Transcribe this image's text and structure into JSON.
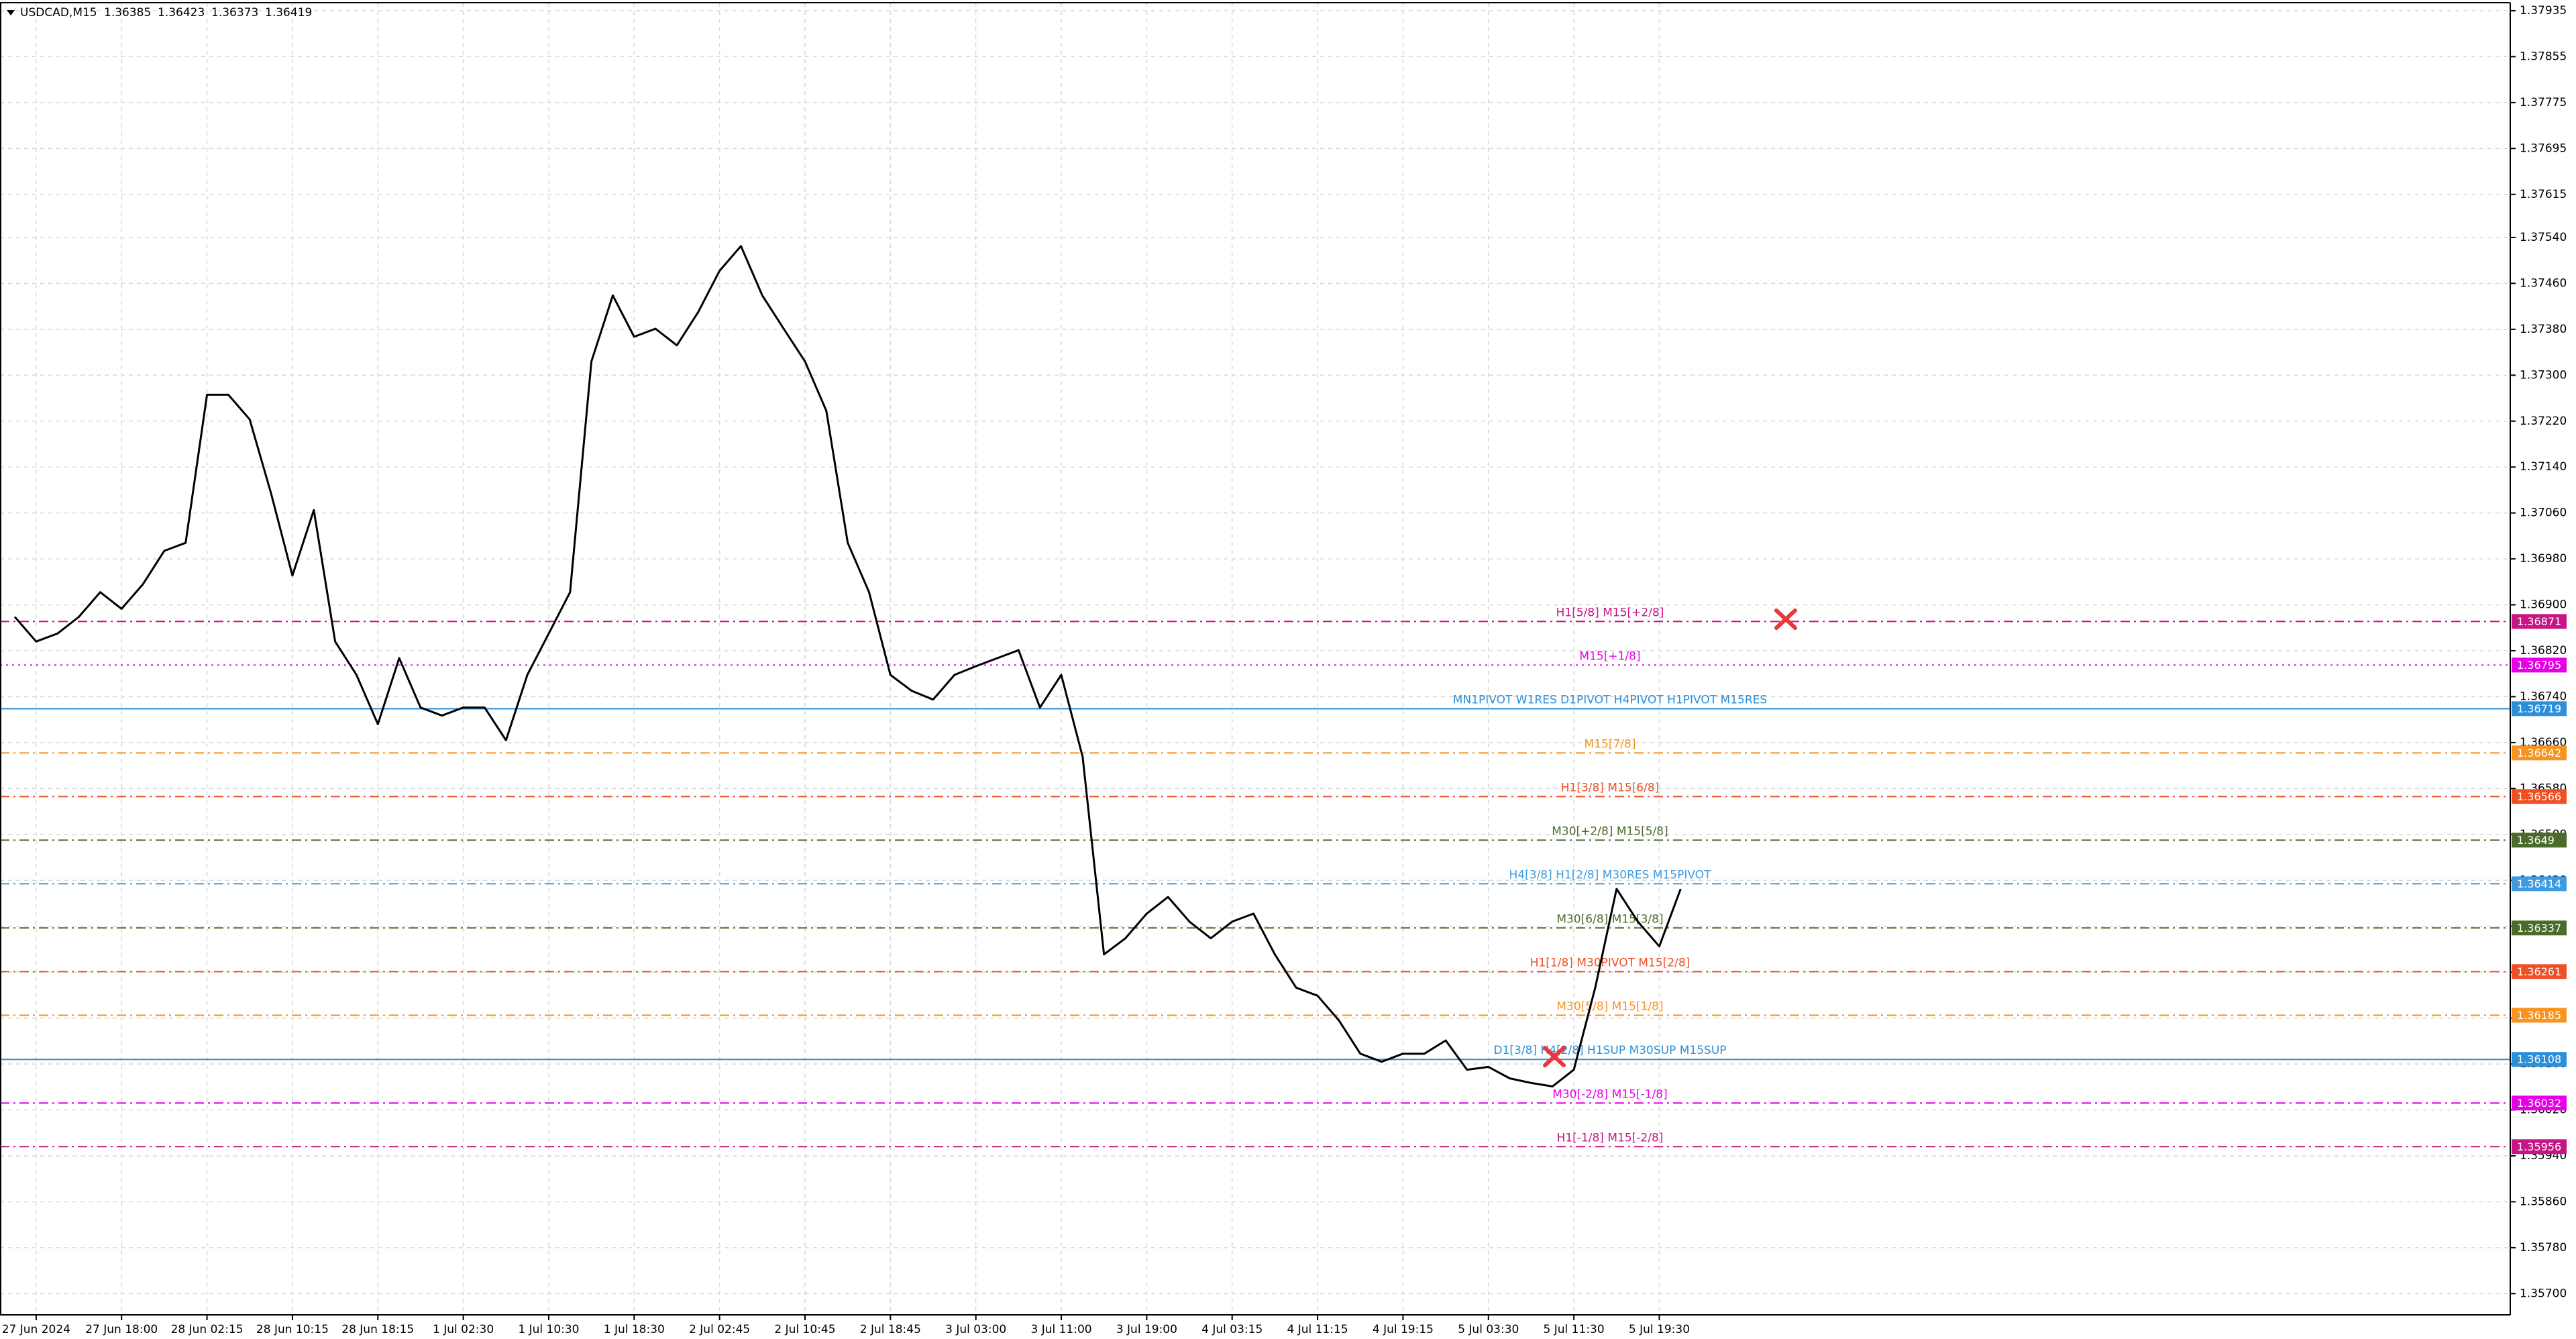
{
  "chart_data": {
    "type": "line",
    "title": "USDCAD,M15",
    "ohlc": [
      1.36385,
      1.36423,
      1.36373,
      1.36419
    ],
    "color": "#000000",
    "grid": true,
    "categories": [
      null,
      "27 Jun 2024",
      null,
      null,
      null,
      "27 Jun 18:00",
      null,
      null,
      null,
      "28 Jun 02:15",
      null,
      null,
      null,
      "28 Jun 10:15",
      null,
      null,
      null,
      "28 Jun 18:15",
      null,
      null,
      null,
      "1 Jul 02:30",
      null,
      null,
      null,
      "1 Jul 10:30",
      null,
      null,
      null,
      "1 Jul 18:30",
      null,
      null,
      null,
      "2 Jul 02:45",
      null,
      null,
      null,
      "2 Jul 10:45",
      null,
      null,
      null,
      "2 Jul 18:45",
      null,
      null,
      null,
      "3 Jul 03:00",
      null,
      null,
      null,
      "3 Jul 11:00",
      null,
      null,
      null,
      "3 Jul 19:00",
      null,
      null,
      null,
      "4 Jul 03:15",
      null,
      null,
      null,
      "4 Jul 11:15",
      null,
      null,
      null,
      "4 Jul 19:15",
      null,
      null,
      null,
      "5 Jul 03:30",
      null,
      null,
      null,
      "5 Jul 11:30",
      null,
      null,
      null,
      "5 Jul 19:30",
      null
    ],
    "values": [
      1.36879,
      1.36836,
      1.3685,
      1.36879,
      1.36922,
      1.36893,
      1.36936,
      1.36994,
      1.37008,
      1.37266,
      1.37266,
      1.37223,
      1.37094,
      1.36951,
      1.37065,
      1.36836,
      1.36778,
      1.36692,
      1.36807,
      1.36721,
      1.36707,
      1.36721,
      1.36721,
      1.36664,
      1.36778,
      1.3685,
      1.36922,
      1.37324,
      1.37439,
      1.37367,
      1.37381,
      1.37352,
      1.3741,
      1.37482,
      1.37525,
      1.37439,
      1.37381,
      1.37324,
      1.37238,
      1.37008,
      1.36922,
      1.36778,
      1.3675,
      1.36735,
      1.36778,
      1.36793,
      1.36807,
      1.36821,
      1.36721,
      1.36778,
      1.36635,
      1.36291,
      1.36319,
      1.36362,
      1.36391,
      1.36348,
      1.36319,
      1.36348,
      1.36362,
      1.36291,
      1.36233,
      1.36219,
      1.36176,
      1.36118,
      1.36104,
      1.36118,
      1.36118,
      1.36141,
      1.3609,
      1.36095,
      1.36075,
      1.36067,
      1.36061,
      1.3609,
      1.36233,
      1.36405,
      1.36348,
      1.36305,
      1.36405
    ],
    "ylim": [
      1.35663,
      1.37949
    ],
    "yticks": [
      1.37935,
      1.37855,
      1.37775,
      1.37695,
      1.37615,
      {
        "value": 1.3754,
        "label": "1.37540"
      },
      {
        "value": 1.3746,
        "label": "1.37460"
      },
      {
        "value": 1.3738,
        "label": "1.37380"
      },
      {
        "value": 1.373,
        "label": "1.37300"
      },
      {
        "value": 1.3722,
        "label": "1.37220"
      },
      {
        "value": 1.3714,
        "label": "1.37140"
      },
      {
        "value": 1.3706,
        "label": "1.37060"
      },
      {
        "value": 1.3698,
        "label": "1.36980"
      },
      {
        "value": 1.369,
        "label": "1.36900"
      },
      {
        "value": 1.3682,
        "label": "1.36820"
      },
      {
        "value": 1.3674,
        "label": "1.36740"
      },
      {
        "value": 1.3666,
        "label": "1.36660"
      },
      {
        "value": 1.3658,
        "label": "1.36580"
      },
      {
        "value": 1.365,
        "label": "1.36500"
      },
      {
        "value": 1.3642,
        "label": "1.36420"
      },
      {
        "value": 1.3634,
        "label": "1.36340"
      },
      {
        "value": 1.3626,
        "label": "1.36260"
      },
      {
        "value": 1.3618,
        "label": "1.36180"
      },
      {
        "value": 1.361,
        "label": "1.36100"
      },
      {
        "value": 1.3602,
        "label": "1.36020"
      },
      {
        "value": 1.3594,
        "label": "1.35940"
      },
      {
        "value": 1.3586,
        "label": "1.35860"
      },
      {
        "value": 1.3578,
        "label": "1.35780"
      },
      {
        "value": 1.357,
        "label": "1.35700"
      }
    ],
    "levels": [
      {
        "value": 1.36871,
        "label": "H1[5/8] M15[+2/8]",
        "color": "#c71585",
        "style": "dashdot"
      },
      {
        "value": 1.36795,
        "label": "M15[+1/8]",
        "color": "#e600e6",
        "style": "dot"
      },
      {
        "value": 1.36719,
        "label": "MN1PIVOT W1RES D1PIVOT H4PIVOT H1PIVOT M15RES",
        "color": "#2b8fd9",
        "style": "solid"
      },
      {
        "value": 1.36642,
        "label": "M15[7/8]",
        "color": "#f7931e",
        "style": "dashdot"
      },
      {
        "value": 1.36566,
        "label": "H1[3/8] M15[6/8]",
        "color": "#f04e23",
        "style": "dashdot"
      },
      {
        "value": 1.3649,
        "label": "M30[+2/8] M15[5/8]",
        "color": "#4a6b2a",
        "style": "dashdot"
      },
      {
        "value": 1.36414,
        "label": "H4[3/8] H1[2/8] M30RES M15PIVOT",
        "color": "#3f9be0",
        "style": "dashdot"
      },
      {
        "value": 1.36337,
        "label": "M30[6/8] M15[3/8]",
        "color": "#4a6b2a",
        "style": "dashdot"
      },
      {
        "value": 1.36261,
        "label": "H1[1/8] M30PIVOT M15[2/8]",
        "color": "#f04e23",
        "style": "dashdot"
      },
      {
        "value": 1.36185,
        "label": "M30[5/8] M15[1/8]",
        "color": "#f7931e",
        "style": "dashdot"
      },
      {
        "value": 1.36108,
        "label": "D1[3/8] H4[2/8] H1SUP M30SUP M15SUP",
        "color": "#2b8fd9",
        "style": "solid"
      },
      {
        "value": 1.36032,
        "label": "M30[-2/8] M15[-1/8]",
        "color": "#e600e6",
        "style": "dashdot"
      },
      {
        "value": 1.35956,
        "label": "H1[-1/8] M15[-2/8]",
        "color": "#c71585",
        "style": "dashdot"
      }
    ]
  }
}
